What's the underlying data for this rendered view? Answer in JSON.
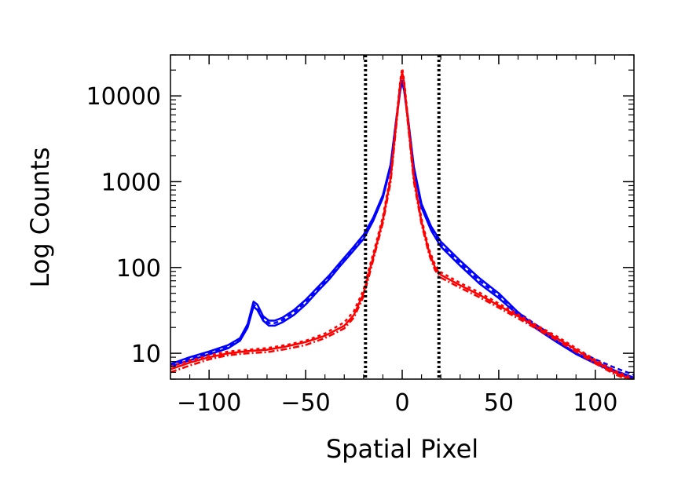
{
  "chart_data": {
    "type": "line",
    "title": "",
    "xlabel": "Spatial Pixel",
    "ylabel": "Log Counts",
    "xlim": [
      -120,
      120
    ],
    "ylim": [
      5,
      30000
    ],
    "y_scale": "log",
    "grid": false,
    "legend": "none",
    "x_ticks": [
      -100,
      -50,
      0,
      50,
      100
    ],
    "x_tick_labels": [
      "−100",
      "−50",
      "0",
      "50",
      "100"
    ],
    "y_ticks": [
      10,
      100,
      1000,
      10000
    ],
    "y_tick_labels": [
      "10",
      "100",
      "1000",
      "10000"
    ],
    "vlines": [
      -19,
      19
    ],
    "vline_color": "#000000",
    "vline_style": "dotted",
    "series": [
      {
        "color": "#0000ff",
        "dash": "",
        "x": [
          -120,
          -110,
          -100,
          -90,
          -84,
          -80,
          -77,
          -75,
          -72,
          -69,
          -66,
          -62,
          -56,
          -50,
          -44,
          -38,
          -32,
          -26,
          -20,
          -15,
          -10,
          -6,
          -3,
          -1,
          0,
          1,
          3,
          6,
          10,
          15,
          20,
          30,
          40,
          50,
          60,
          70,
          80,
          90,
          100,
          110,
          120
        ],
        "y": [
          7.5,
          9,
          10.5,
          12.5,
          15,
          22,
          40,
          37,
          27,
          24,
          24,
          26,
          32,
          42,
          58,
          80,
          115,
          165,
          240,
          380,
          700,
          1600,
          5500,
          12000,
          15000,
          12000,
          5500,
          1500,
          550,
          300,
          200,
          120,
          75,
          50,
          30,
          20,
          14,
          10,
          8,
          6.3,
          5.2
        ]
      },
      {
        "color": "#0000ff",
        "dash": "",
        "x": [
          -120,
          -110,
          -100,
          -90,
          -84,
          -80,
          -77,
          -75,
          -72,
          -69,
          -66,
          -62,
          -56,
          -50,
          -44,
          -38,
          -32,
          -26,
          -20,
          -15,
          -10,
          -6,
          -3,
          -1,
          0,
          1,
          3,
          6,
          10,
          15,
          20,
          30,
          40,
          50,
          60,
          70,
          80,
          90,
          100,
          110,
          120
        ],
        "y": [
          7,
          8.3,
          9.7,
          11.5,
          14,
          20,
          35,
          32,
          24,
          21,
          21,
          23,
          28,
          37,
          52,
          72,
          105,
          150,
          215,
          350,
          650,
          1500,
          5200,
          11500,
          14500,
          11500,
          5200,
          1400,
          500,
          270,
          175,
          105,
          65,
          44,
          28,
          19,
          13.5,
          9.8,
          7.6,
          6,
          5
        ]
      },
      {
        "color": "#0000ff",
        "dash": "6,4",
        "x": [
          -120,
          -110,
          -100,
          -90,
          -84,
          -80,
          -77,
          -75,
          -72,
          -69,
          -66,
          -62,
          -56,
          -50,
          -44,
          -38,
          -32,
          -26,
          -20,
          -15,
          -10,
          -6,
          -3,
          -1,
          0,
          1,
          3,
          6,
          10,
          15,
          20,
          30,
          40,
          50,
          60,
          70,
          80,
          90,
          100,
          110,
          120
        ],
        "y": [
          7.3,
          8.7,
          10.1,
          12,
          14.5,
          21,
          37,
          34,
          25.5,
          22.5,
          22.5,
          24.5,
          30,
          40,
          55,
          76,
          110,
          158,
          228,
          365,
          680,
          1550,
          5400,
          11800,
          14800,
          11800,
          5400,
          1450,
          520,
          285,
          185,
          112,
          70,
          47,
          30,
          21,
          15,
          11,
          8.5,
          6.8,
          5.6
        ]
      },
      {
        "color": "#ff0000",
        "dash": "",
        "x": [
          -120,
          -110,
          -100,
          -90,
          -80,
          -70,
          -60,
          -50,
          -40,
          -30,
          -25,
          -20,
          -17,
          -14,
          -10,
          -6,
          -3,
          -1,
          0,
          1,
          3,
          6,
          10,
          14,
          17,
          20,
          30,
          40,
          50,
          60,
          70,
          80,
          90,
          100,
          110,
          120
        ],
        "y": [
          6.5,
          7.8,
          9,
          10,
          10.6,
          11,
          12,
          13.5,
          16,
          21,
          28,
          50,
          90,
          160,
          360,
          1100,
          5000,
          14000,
          19000,
          14000,
          5000,
          1100,
          340,
          150,
          100,
          82,
          62,
          48,
          36,
          27,
          20,
          15,
          11,
          8,
          6,
          4.8
        ]
      },
      {
        "color": "#ff0000",
        "dash": "4,4",
        "x": [
          -120,
          -110,
          -100,
          -90,
          -80,
          -70,
          -60,
          -50,
          -40,
          -30,
          -25,
          -20,
          -17,
          -14,
          -10,
          -6,
          -3,
          -1,
          0,
          1,
          3,
          6,
          10,
          14,
          17,
          20,
          30,
          40,
          50,
          60,
          70,
          80,
          90,
          100,
          110,
          120
        ],
        "y": [
          7,
          8.2,
          9.5,
          10.5,
          11,
          11.5,
          12.5,
          14,
          17,
          23,
          31,
          55,
          100,
          175,
          390,
          1200,
          5400,
          15000,
          21000,
          15000,
          5400,
          1200,
          370,
          160,
          108,
          88,
          66,
          51,
          38,
          28.5,
          21,
          15.8,
          11.5,
          8.4,
          6.3,
          5
        ]
      },
      {
        "color": "#ff0000",
        "dash": "8,3,2,3",
        "x": [
          -120,
          -110,
          -100,
          -90,
          -80,
          -70,
          -60,
          -50,
          -40,
          -30,
          -25,
          -20,
          -17,
          -14,
          -10,
          -6,
          -3,
          -1,
          0,
          1,
          3,
          6,
          10,
          14,
          17,
          20,
          30,
          40,
          50,
          60,
          70,
          80,
          90,
          100,
          110,
          120
        ],
        "y": [
          6,
          7.2,
          8.5,
          9.5,
          10,
          10.3,
          11.2,
          12.5,
          15,
          19.5,
          26,
          46,
          82,
          150,
          330,
          1000,
          4600,
          13000,
          18000,
          13000,
          4600,
          1000,
          320,
          140,
          93,
          76,
          58,
          45,
          34,
          25.5,
          19,
          14.2,
          10.4,
          7.6,
          5.7,
          4.6
        ]
      }
    ]
  }
}
